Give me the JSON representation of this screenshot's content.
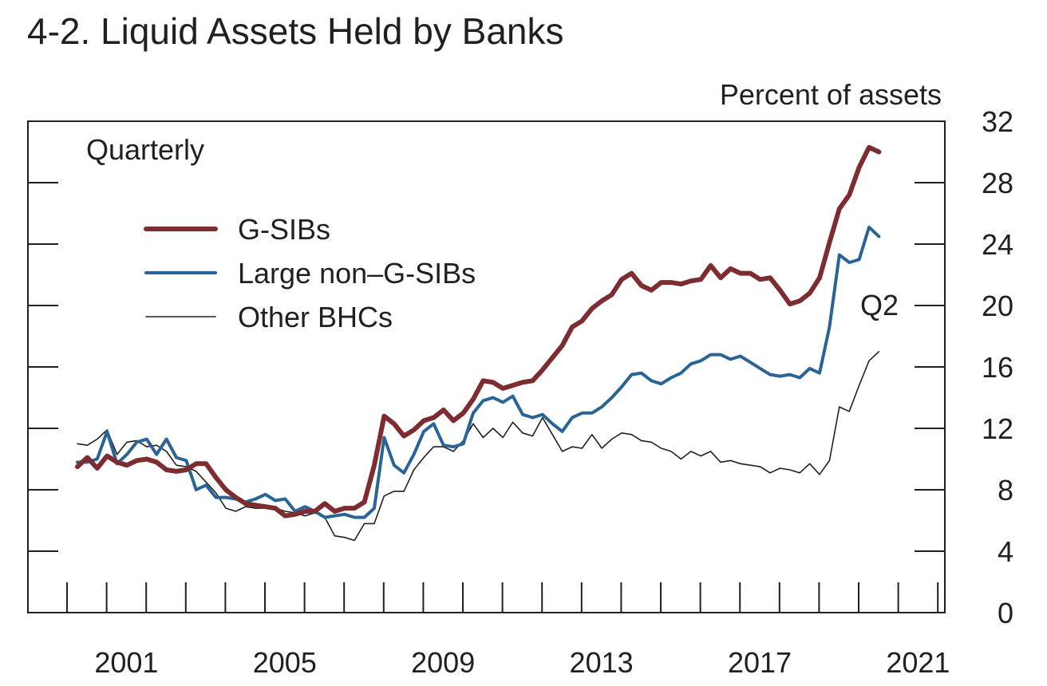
{
  "chart_data": {
    "type": "line",
    "title": "4-2. Liquid Assets Held by Banks",
    "unit_label": "Percent of assets",
    "frequency_label": "Quarterly",
    "end_annotation": "Q2",
    "ylim": [
      0,
      32
    ],
    "y_ticks": [
      "0",
      "4",
      "8",
      "12",
      "16",
      "20",
      "24",
      "28",
      "32"
    ],
    "x_tick_labels": [
      "2001",
      "2005",
      "2009",
      "2013",
      "2017",
      "2021"
    ],
    "grid": false,
    "legend_position": "top-left",
    "series": [
      {
        "name": "G-SIBs",
        "color": "#7d2c30",
        "values": [
          9.5,
          10.1,
          9.4,
          10.2,
          9.8,
          9.6,
          9.9,
          10.0,
          9.8,
          9.3,
          9.2,
          9.3,
          9.7,
          9.7,
          8.8,
          8.0,
          7.5,
          7.1,
          7.0,
          6.9,
          6.8,
          6.3,
          6.4,
          6.6,
          6.6,
          7.1,
          6.6,
          6.8,
          6.8,
          7.2,
          9.6,
          12.8,
          12.3,
          11.5,
          11.9,
          12.5,
          12.7,
          13.2,
          12.5,
          13.0,
          13.9,
          15.1,
          15.0,
          14.6,
          14.8,
          15.0,
          15.1,
          15.8,
          16.6,
          17.4,
          18.6,
          19.0,
          19.8,
          20.3,
          20.7,
          21.7,
          22.1,
          21.3,
          21.0,
          21.5,
          21.5,
          21.4,
          21.6,
          21.7,
          22.6,
          21.8,
          22.4,
          22.1,
          22.1,
          21.7,
          21.8,
          21.0,
          20.1,
          20.3,
          20.8,
          21.8,
          24.1,
          26.3,
          27.2,
          29.0,
          30.3,
          30.0
        ]
      },
      {
        "name": "Large non–G-SIBs",
        "color": "#2a6496",
        "values": [
          9.8,
          9.8,
          10.0,
          11.8,
          9.7,
          10.3,
          11.1,
          11.3,
          10.3,
          11.3,
          10.1,
          9.9,
          8.0,
          8.3,
          7.5,
          7.5,
          7.4,
          7.2,
          7.4,
          7.7,
          7.3,
          7.4,
          6.6,
          6.9,
          6.6,
          6.2,
          6.3,
          6.4,
          6.2,
          6.2,
          6.8,
          11.4,
          9.6,
          9.1,
          10.3,
          11.8,
          12.3,
          10.9,
          10.8,
          11.0,
          13.0,
          13.8,
          14.0,
          13.7,
          14.1,
          12.9,
          12.7,
          12.9,
          12.3,
          11.8,
          12.7,
          13.0,
          13.0,
          13.4,
          14.0,
          14.7,
          15.5,
          15.6,
          15.1,
          14.9,
          15.3,
          15.6,
          16.2,
          16.4,
          16.8,
          16.8,
          16.5,
          16.7,
          16.3,
          15.9,
          15.5,
          15.4,
          15.5,
          15.3,
          15.9,
          15.6,
          18.6,
          23.3,
          22.8,
          23.0,
          25.1,
          24.5
        ]
      },
      {
        "name": "Other BHCs",
        "color": "#231f20",
        "values": [
          11.0,
          10.9,
          11.3,
          11.9,
          10.3,
          11.1,
          11.2,
          10.8,
          10.9,
          10.5,
          9.6,
          9.5,
          9.2,
          8.5,
          7.8,
          6.8,
          6.6,
          6.9,
          6.8,
          6.8,
          6.8,
          6.6,
          6.5,
          6.3,
          6.5,
          6.2,
          5.0,
          4.9,
          4.7,
          5.8,
          5.8,
          7.6,
          7.9,
          7.9,
          9.3,
          10.1,
          10.8,
          10.8,
          10.5,
          11.2,
          12.3,
          11.4,
          12.0,
          11.4,
          12.4,
          11.7,
          11.5,
          12.7,
          11.6,
          10.5,
          10.8,
          10.7,
          11.6,
          10.7,
          11.3,
          11.7,
          11.6,
          11.2,
          11.1,
          10.7,
          10.5,
          10.0,
          10.5,
          10.2,
          10.5,
          9.8,
          9.9,
          9.7,
          9.6,
          9.5,
          9.1,
          9.4,
          9.3,
          9.1,
          9.7,
          9.0,
          9.9,
          13.4,
          13.1,
          14.8,
          16.4,
          17.0
        ]
      }
    ]
  }
}
